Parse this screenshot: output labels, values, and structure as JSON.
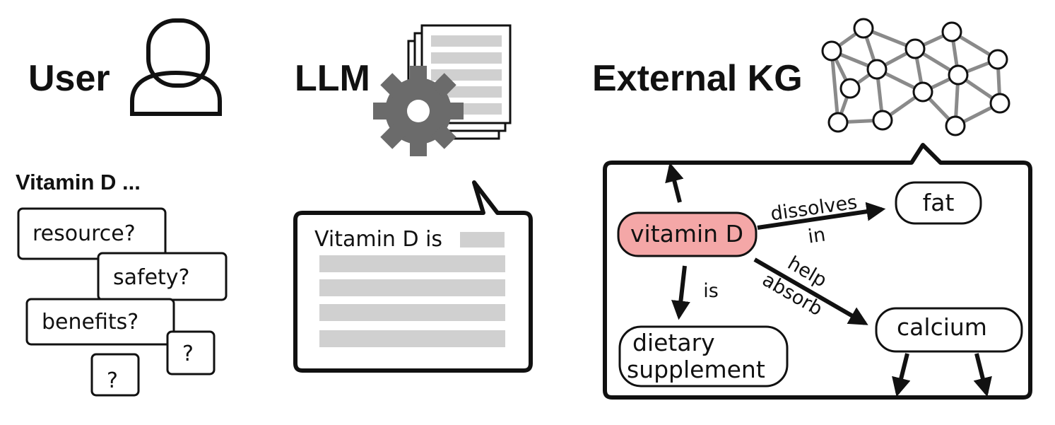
{
  "user": {
    "title": "User",
    "query": "Vitamin D ...",
    "questions": [
      "resource?",
      "safety?",
      "benefits?",
      "?",
      "?"
    ]
  },
  "llm": {
    "title": "LLM",
    "response_text": "Vitamin D is"
  },
  "kg": {
    "title": "External KG",
    "nodes": {
      "vitamin_d": "vitamin D",
      "fat": "fat",
      "calcium": "calcium",
      "dietary_line1": "dietary",
      "dietary_line2": "supplement"
    },
    "edges": {
      "dissolves_line1": "dissolves",
      "dissolves_line2": "in",
      "is": "is",
      "help_line1": "help",
      "help_line2": "absorb"
    }
  },
  "colors": {
    "ink": "#111111",
    "gear": "#6b6b6b",
    "placeholder_bar": "#d0d0d0",
    "highlight_node": "#f4a7a7",
    "graph_edge": "#8a8a8a"
  }
}
